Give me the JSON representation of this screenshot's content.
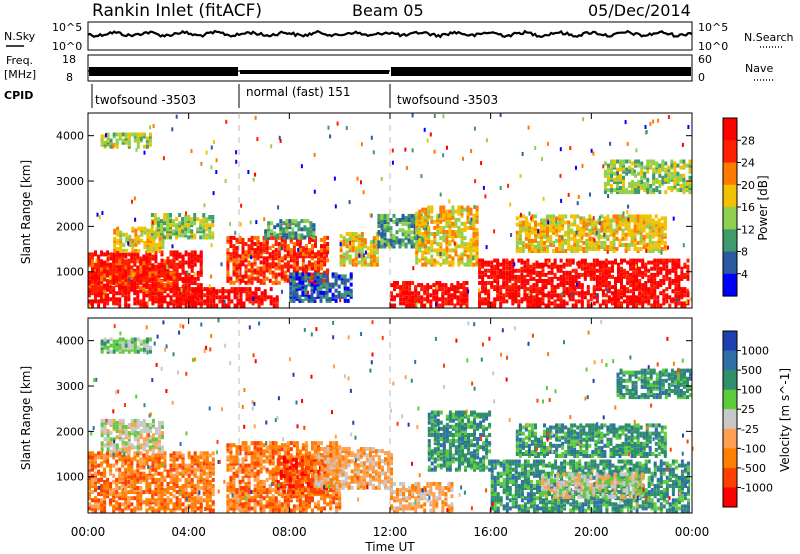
{
  "header": {
    "station": "Rankin Inlet (fitACF)",
    "beam": "Beam 05",
    "date": "05/Dec/2014"
  },
  "summary_panels": {
    "nsky_label": "N.Sky",
    "nsky_ticks": [
      "10^5",
      "10^0"
    ],
    "nsearch_label": "N.Search",
    "nsearch_ticks": [
      "10^5",
      "10^0"
    ],
    "freq_label_1": "Freq.",
    "freq_label_2": "[MHz]",
    "freq_ticks": [
      "18",
      "8"
    ],
    "nave_label": "Nave",
    "nave_ticks": [
      "60",
      "0"
    ],
    "cpid_label": "CPID"
  },
  "cpid_segments": [
    {
      "label": "twofsound -3503",
      "start_hour": 0,
      "end_hour": 6
    },
    {
      "label": "normal (fast) 151",
      "start_hour": 6,
      "end_hour": 12
    },
    {
      "label": "twofsound -3503",
      "start_hour": 12,
      "end_hour": 24
    }
  ],
  "x_axis": {
    "label": "Time UT",
    "range_hours": [
      0,
      24
    ],
    "tick_labels": [
      "00:00",
      "04:00",
      "08:00",
      "12:00",
      "16:00",
      "20:00",
      "00:00"
    ],
    "tick_hours": [
      0,
      4,
      8,
      12,
      16,
      20,
      24
    ]
  },
  "y_axis": {
    "label": "Slant Range [km]",
    "range_km": [
      200,
      4500
    ],
    "tick_labels": [
      "1000",
      "2000",
      "3000",
      "4000"
    ],
    "tick_km": [
      1000,
      2000,
      3000,
      4000
    ]
  },
  "power_colorbar": {
    "label": "Power [dB]",
    "tick_labels": [
      "28",
      "24",
      "20",
      "16",
      "12",
      "8",
      "4"
    ],
    "colors": [
      "#ff0000",
      "#ff2000",
      "#ff7a00",
      "#f2c200",
      "#8fd14f",
      "#3f9a6c",
      "#2a5aa0",
      "#0000ff"
    ]
  },
  "velocity_colorbar": {
    "label": "Velocity [m s^-1]",
    "tick_labels": [
      "1000",
      "500",
      "100",
      "25",
      "-25",
      "-100",
      "-500",
      "-1000"
    ],
    "colors": [
      "#1f3fb0",
      "#2f6fa8",
      "#2f8f6a",
      "#5ccc3c",
      "#c8c8c8",
      "#ffa050",
      "#ff8000",
      "#ff4000",
      "#ff0000"
    ]
  },
  "chart_data": [
    {
      "type": "heatmap",
      "title": "Power",
      "xlabel": "Time UT",
      "ylabel": "Slant Range [km]",
      "xlim_hours": [
        0,
        24
      ],
      "ylim_km": [
        200,
        4500
      ],
      "colorbar": "Power [dB]",
      "blobs": [
        {
          "t0": 0.0,
          "t1": 4.5,
          "r0": 300,
          "r1": 1500,
          "level": 7
        },
        {
          "t0": 0.0,
          "t1": 3.5,
          "r0": 600,
          "r1": 1300,
          "level": 6
        },
        {
          "t0": 1.0,
          "t1": 3.0,
          "r0": 1500,
          "r1": 2000,
          "level": 4
        },
        {
          "t0": 2.5,
          "t1": 5.0,
          "r0": 1800,
          "r1": 2300,
          "level": 3
        },
        {
          "t0": 0.5,
          "t1": 2.5,
          "r0": 3800,
          "r1": 4100,
          "level": 3
        },
        {
          "t0": 3.5,
          "t1": 7.5,
          "r0": 300,
          "r1": 700,
          "level": 7
        },
        {
          "t0": 5.5,
          "t1": 9.5,
          "r0": 800,
          "r1": 1800,
          "level": 6
        },
        {
          "t0": 7.0,
          "t1": 9.0,
          "r0": 1800,
          "r1": 2200,
          "level": 2
        },
        {
          "t0": 8.0,
          "t1": 10.5,
          "r0": 400,
          "r1": 1000,
          "level": 1
        },
        {
          "t0": 10.0,
          "t1": 11.5,
          "r0": 1200,
          "r1": 1900,
          "level": 4
        },
        {
          "t0": 11.5,
          "t1": 13.5,
          "r0": 1600,
          "r1": 2300,
          "level": 2
        },
        {
          "t0": 12.0,
          "t1": 15.0,
          "r0": 300,
          "r1": 800,
          "level": 7
        },
        {
          "t0": 13.0,
          "t1": 15.5,
          "r0": 1200,
          "r1": 2500,
          "level": 4
        },
        {
          "t0": 15.5,
          "t1": 24.0,
          "r0": 300,
          "r1": 1300,
          "level": 7
        },
        {
          "t0": 17.0,
          "t1": 23.0,
          "r0": 1500,
          "r1": 2300,
          "level": 4
        },
        {
          "t0": 20.5,
          "t1": 24.0,
          "r0": 2800,
          "r1": 3500,
          "level": 3
        }
      ]
    },
    {
      "type": "heatmap",
      "title": "Velocity",
      "xlabel": "Time UT",
      "ylabel": "Slant Range [km]",
      "xlim_hours": [
        0,
        24
      ],
      "ylim_km": [
        200,
        4500
      ],
      "colorbar": "Velocity [m s^-1]",
      "blobs": [
        {
          "t0": 0.0,
          "t1": 5.0,
          "r0": 300,
          "r1": 1600,
          "level": 2
        },
        {
          "t0": 0.5,
          "t1": 3.0,
          "r0": 1600,
          "r1": 2300,
          "level": 4
        },
        {
          "t0": 0.5,
          "t1": 2.5,
          "r0": 3800,
          "r1": 4100,
          "level": 5
        },
        {
          "t0": 5.5,
          "t1": 10.0,
          "r0": 300,
          "r1": 1800,
          "level": 2
        },
        {
          "t0": 7.5,
          "t1": 9.5,
          "r0": 700,
          "r1": 1500,
          "level": 1
        },
        {
          "t0": 9.0,
          "t1": 12.0,
          "r0": 800,
          "r1": 1700,
          "level": 3
        },
        {
          "t0": 12.0,
          "t1": 14.5,
          "r0": 300,
          "r1": 900,
          "level": 3
        },
        {
          "t0": 13.5,
          "t1": 16.0,
          "r0": 1200,
          "r1": 2500,
          "level": 6
        },
        {
          "t0": 16.0,
          "t1": 24.0,
          "r0": 300,
          "r1": 1400,
          "level": 6
        },
        {
          "t0": 18.0,
          "t1": 22.0,
          "r0": 600,
          "r1": 1100,
          "level": 4
        },
        {
          "t0": 17.0,
          "t1": 23.0,
          "r0": 1500,
          "r1": 2200,
          "level": 6
        },
        {
          "t0": 21.0,
          "t1": 24.0,
          "r0": 2800,
          "r1": 3400,
          "level": 6
        }
      ]
    }
  ]
}
